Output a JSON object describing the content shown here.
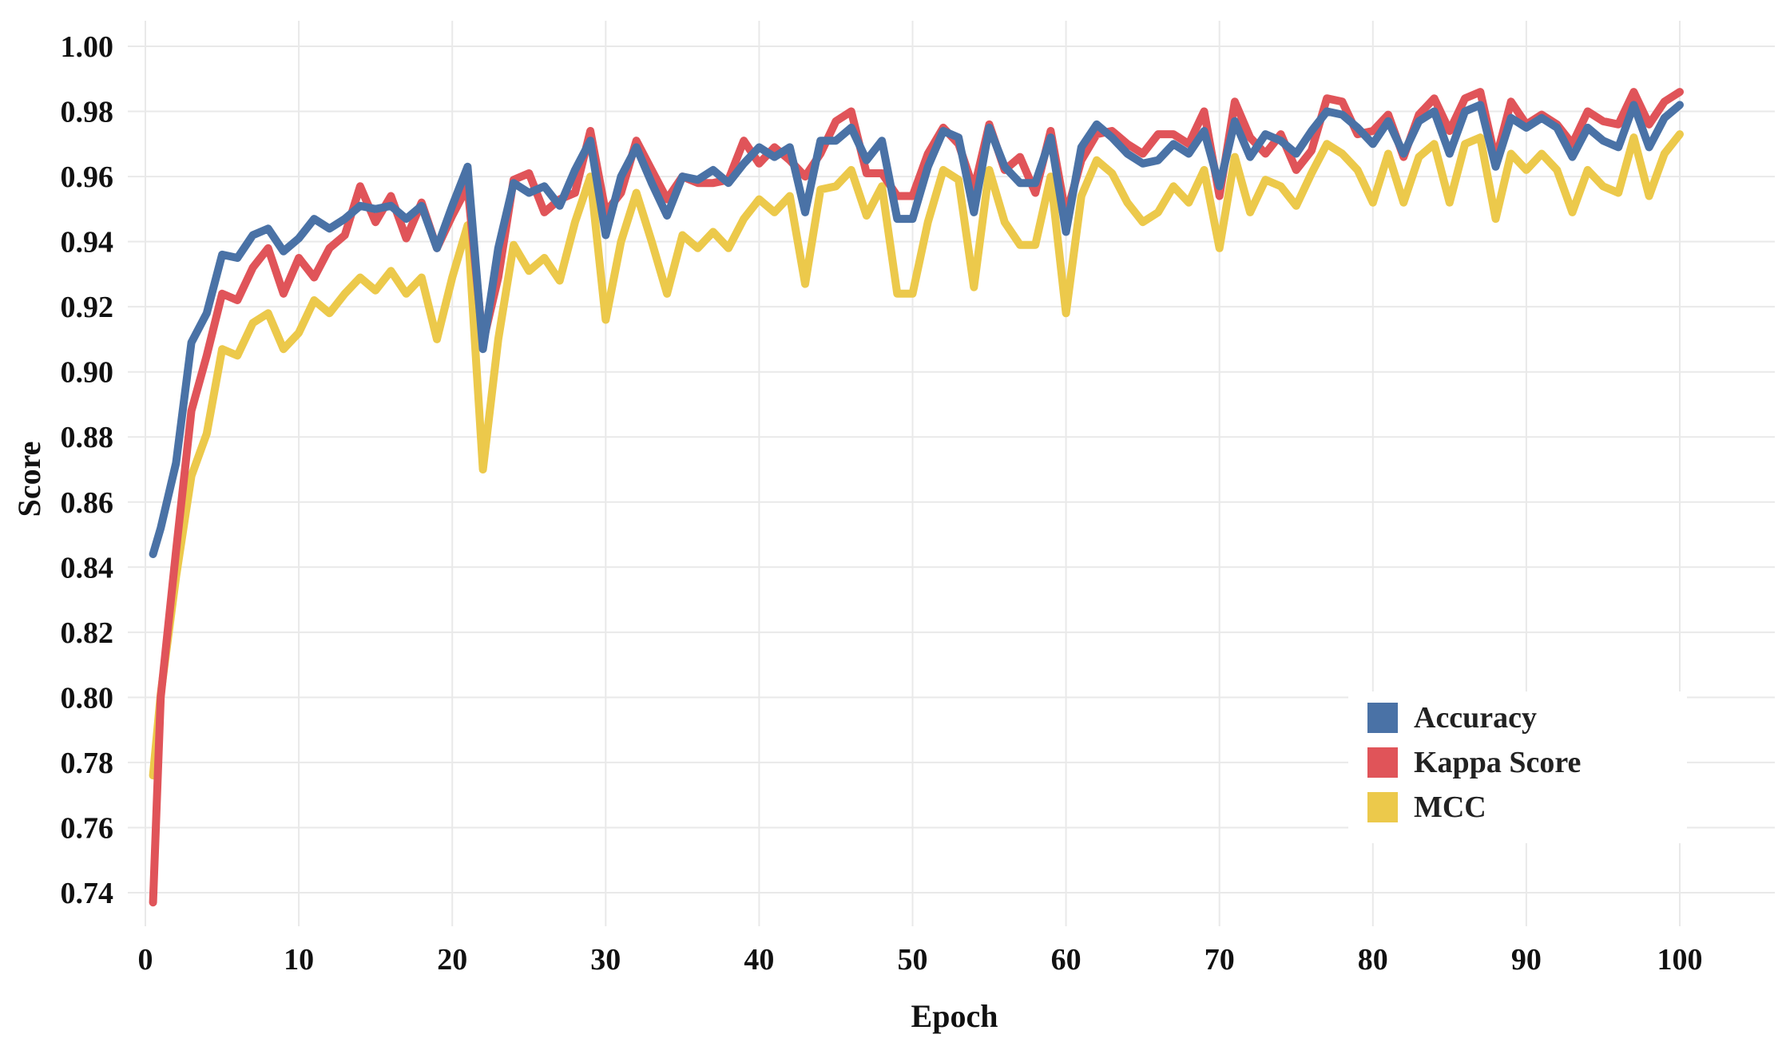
{
  "chart_data": {
    "type": "line",
    "title": "",
    "xlabel": "Epoch",
    "ylabel": "Score",
    "xlim": [
      -1,
      104
    ],
    "ylim": [
      0.73,
      1.01
    ],
    "xticks": [
      0,
      10,
      20,
      30,
      40,
      50,
      60,
      70,
      80,
      90,
      100
    ],
    "xtick_labels": [
      "0",
      "10",
      "20",
      "30",
      "40",
      "50",
      "60",
      "70",
      "80",
      "90",
      "100"
    ],
    "yticks": [
      0.74,
      0.76,
      0.78,
      0.8,
      0.82,
      0.84,
      0.86,
      0.88,
      0.9,
      0.92,
      0.94,
      0.96,
      0.98,
      1.0
    ],
    "ytick_labels": [
      "0.74",
      "0.76",
      "0.78",
      "0.80",
      "0.82",
      "0.84",
      "0.86",
      "0.88",
      "0.90",
      "0.92",
      "0.94",
      "0.96",
      "0.98",
      "1.00"
    ],
    "grid": true,
    "legend_position": "bottom-right",
    "x": [
      0.5,
      1,
      2,
      3,
      4,
      5,
      6,
      7,
      8,
      9,
      10,
      11,
      12,
      13,
      14,
      15,
      16,
      17,
      18,
      19,
      20,
      21,
      22,
      23,
      24,
      25,
      26,
      27,
      28,
      29,
      30,
      31,
      32,
      33,
      34,
      35,
      36,
      37,
      38,
      39,
      40,
      41,
      42,
      43,
      44,
      45,
      46,
      47,
      48,
      49,
      50,
      51,
      52,
      53,
      54,
      55,
      56,
      57,
      58,
      59,
      60,
      61,
      62,
      63,
      64,
      65,
      66,
      67,
      68,
      69,
      70,
      71,
      72,
      73,
      74,
      75,
      76,
      77,
      78,
      79,
      80,
      81,
      82,
      83,
      84,
      85,
      86,
      87,
      88,
      89,
      90,
      91,
      92,
      93,
      94,
      95,
      96,
      97,
      98,
      99,
      100
    ],
    "series": [
      {
        "name": "Accuracy",
        "color": "#4a72a6",
        "values": [
          0.844,
          0.852,
          0.872,
          0.909,
          0.918,
          0.936,
          0.935,
          0.942,
          0.944,
          0.937,
          0.941,
          0.947,
          0.944,
          0.947,
          0.951,
          0.95,
          0.951,
          0.947,
          0.951,
          0.938,
          0.951,
          0.963,
          0.907,
          0.938,
          0.958,
          0.955,
          0.957,
          0.951,
          0.962,
          0.971,
          0.942,
          0.96,
          0.969,
          0.958,
          0.948,
          0.96,
          0.959,
          0.962,
          0.958,
          0.964,
          0.969,
          0.966,
          0.969,
          0.949,
          0.971,
          0.971,
          0.975,
          0.965,
          0.971,
          0.947,
          0.947,
          0.963,
          0.974,
          0.972,
          0.949,
          0.975,
          0.963,
          0.958,
          0.958,
          0.972,
          0.943,
          0.969,
          0.976,
          0.972,
          0.967,
          0.964,
          0.965,
          0.97,
          0.967,
          0.974,
          0.957,
          0.977,
          0.966,
          0.973,
          0.971,
          0.967,
          0.974,
          0.98,
          0.979,
          0.975,
          0.97,
          0.977,
          0.967,
          0.977,
          0.98,
          0.967,
          0.98,
          0.982,
          0.963,
          0.978,
          0.975,
          0.978,
          0.975,
          0.966,
          0.975,
          0.971,
          0.969,
          0.982,
          0.969,
          0.978,
          0.982
        ]
      },
      {
        "name": "Kappa Score",
        "color": "#e05459",
        "values": [
          0.737,
          0.8,
          0.845,
          0.888,
          0.905,
          0.924,
          0.922,
          0.932,
          0.938,
          0.924,
          0.935,
          0.929,
          0.938,
          0.942,
          0.957,
          0.946,
          0.954,
          0.941,
          0.952,
          0.938,
          0.948,
          0.957,
          0.909,
          0.929,
          0.959,
          0.961,
          0.949,
          0.953,
          0.955,
          0.974,
          0.949,
          0.955,
          0.971,
          0.962,
          0.953,
          0.96,
          0.958,
          0.958,
          0.959,
          0.971,
          0.964,
          0.969,
          0.965,
          0.96,
          0.967,
          0.977,
          0.98,
          0.961,
          0.961,
          0.954,
          0.954,
          0.967,
          0.975,
          0.97,
          0.956,
          0.976,
          0.962,
          0.966,
          0.955,
          0.974,
          0.948,
          0.965,
          0.973,
          0.974,
          0.97,
          0.967,
          0.973,
          0.973,
          0.97,
          0.98,
          0.954,
          0.983,
          0.972,
          0.967,
          0.973,
          0.962,
          0.968,
          0.984,
          0.983,
          0.973,
          0.974,
          0.979,
          0.966,
          0.979,
          0.984,
          0.974,
          0.984,
          0.986,
          0.965,
          0.983,
          0.976,
          0.979,
          0.976,
          0.97,
          0.98,
          0.977,
          0.976,
          0.986,
          0.976,
          0.983,
          0.986
        ]
      },
      {
        "name": "MCC",
        "color": "#ecc94b",
        "values": [
          0.776,
          0.801,
          0.837,
          0.868,
          0.881,
          0.907,
          0.905,
          0.915,
          0.918,
          0.907,
          0.912,
          0.922,
          0.918,
          0.924,
          0.929,
          0.925,
          0.931,
          0.924,
          0.929,
          0.91,
          0.929,
          0.945,
          0.87,
          0.91,
          0.939,
          0.931,
          0.935,
          0.928,
          0.946,
          0.96,
          0.916,
          0.94,
          0.955,
          0.94,
          0.924,
          0.942,
          0.938,
          0.943,
          0.938,
          0.947,
          0.953,
          0.949,
          0.954,
          0.927,
          0.956,
          0.957,
          0.962,
          0.948,
          0.957,
          0.924,
          0.924,
          0.946,
          0.962,
          0.959,
          0.926,
          0.962,
          0.946,
          0.939,
          0.939,
          0.96,
          0.918,
          0.954,
          0.965,
          0.961,
          0.952,
          0.946,
          0.949,
          0.957,
          0.952,
          0.962,
          0.938,
          0.966,
          0.949,
          0.959,
          0.957,
          0.951,
          0.961,
          0.97,
          0.967,
          0.962,
          0.952,
          0.967,
          0.952,
          0.966,
          0.97,
          0.952,
          0.97,
          0.972,
          0.947,
          0.967,
          0.962,
          0.967,
          0.962,
          0.949,
          0.962,
          0.957,
          0.955,
          0.972,
          0.954,
          0.967,
          0.973
        ]
      }
    ]
  }
}
